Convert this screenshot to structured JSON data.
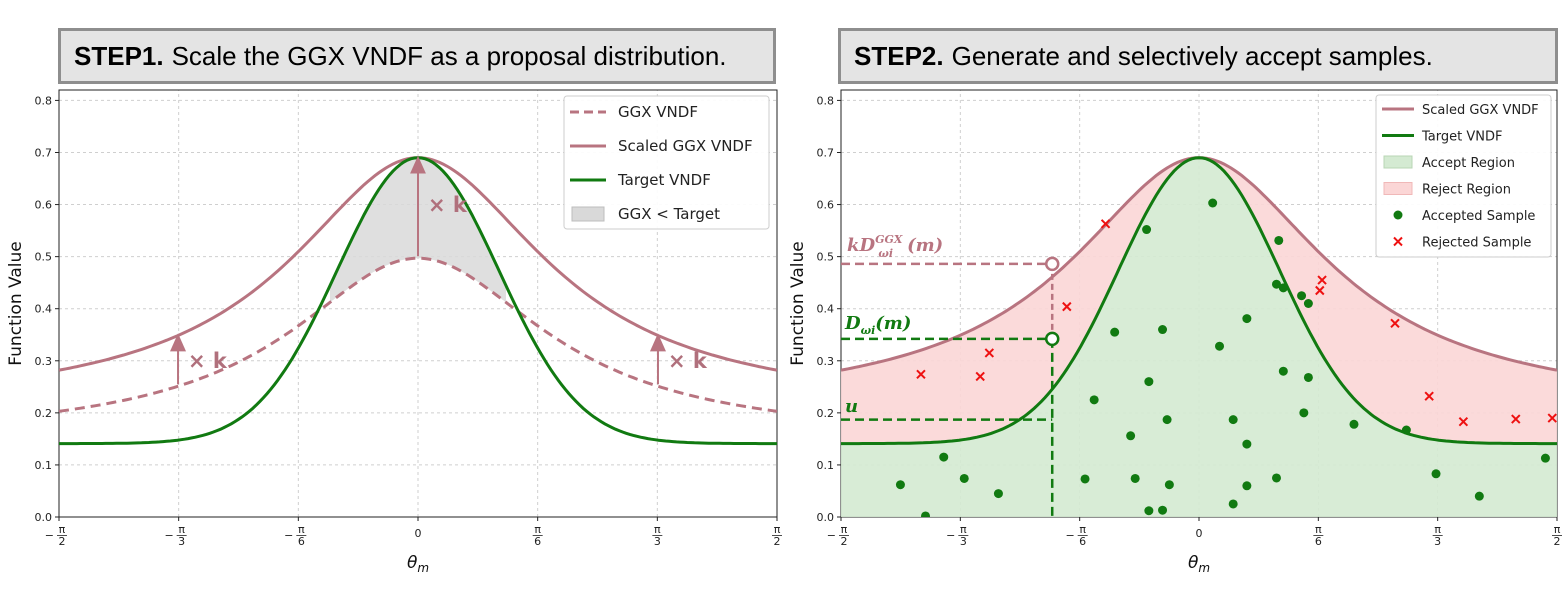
{
  "headers": [
    {
      "step": "STEP1.",
      "text": "Scale the GGX VNDF as a proposal distribution."
    },
    {
      "step": "STEP2.",
      "text": "Generate and selectively accept samples."
    }
  ],
  "colors": {
    "scaled": "#b87480",
    "target": "#117a11",
    "ggx_fill": "#d9d9d9",
    "accept_fill": "#d4ead2",
    "reject_fill": "#fbd6d6",
    "accepted": "#117a11",
    "rejected": "#ee1111"
  },
  "chart_data": [
    {
      "type": "line",
      "xlabel": "θm",
      "ylabel": "Function Value",
      "xlim": [
        -1.5708,
        1.5708
      ],
      "ylim": [
        0,
        0.82
      ],
      "xticks": [
        -1.5708,
        -1.0472,
        -0.5236,
        0,
        0.5236,
        1.0472,
        1.5708
      ],
      "xtick_labels": [
        "−π/2",
        "−π/3",
        "−π/6",
        "0",
        "π/6",
        "π/3",
        "π/2"
      ],
      "yticks": [
        0.0,
        0.1,
        0.2,
        0.3,
        0.4,
        0.5,
        0.6,
        0.7,
        0.8
      ],
      "ytick_labels": [
        "0.0",
        "0.1",
        "0.2",
        "0.3",
        "0.4",
        "0.5",
        "0.6",
        "0.7",
        "0.8"
      ],
      "grid": true,
      "legend_position": "top-right",
      "scale_factor_label": "× k",
      "series": [
        {
          "name": "GGX VNDF",
          "style": "dashed",
          "x": [
            -1.571,
            -1.309,
            -1.047,
            -0.785,
            -0.524,
            -0.262,
            0,
            0.262,
            0.524,
            0.785,
            1.047,
            1.309,
            1.571
          ],
          "y": [
            0.203,
            0.213,
            0.241,
            0.294,
            0.369,
            0.451,
            0.497,
            0.451,
            0.369,
            0.294,
            0.241,
            0.213,
            0.203
          ]
        },
        {
          "name": "Scaled GGX VNDF",
          "style": "solid",
          "x": [
            -1.571,
            -1.309,
            -1.047,
            -0.785,
            -0.524,
            -0.262,
            0,
            0.262,
            0.524,
            0.785,
            1.047,
            1.309,
            1.571
          ],
          "y": [
            0.282,
            0.296,
            0.335,
            0.409,
            0.513,
            0.627,
            0.69,
            0.627,
            0.513,
            0.409,
            0.335,
            0.296,
            0.282
          ]
        },
        {
          "name": "Target VNDF",
          "style": "solid",
          "x": [
            -1.571,
            -1.309,
            -1.047,
            -0.785,
            -0.524,
            -0.262,
            0,
            0.262,
            0.524,
            0.785,
            1.047,
            1.309,
            1.571
          ],
          "y": [
            0.141,
            0.154,
            0.191,
            0.268,
            0.411,
            0.602,
            0.69,
            0.602,
            0.411,
            0.268,
            0.191,
            0.154,
            0.141
          ]
        },
        {
          "name": "GGX < Target",
          "style": "fill"
        }
      ]
    },
    {
      "type": "scatter",
      "xlabel": "θm",
      "ylabel": "Function Value",
      "xlim": [
        -1.5708,
        1.5708
      ],
      "ylim": [
        0,
        0.82
      ],
      "grid": true,
      "legend_position": "top-right",
      "series": [
        {
          "name": "Scaled GGX VNDF",
          "style": "solid"
        },
        {
          "name": "Target VNDF",
          "style": "solid"
        },
        {
          "name": "Accept Region",
          "style": "fill"
        },
        {
          "name": "Reject Region",
          "style": "fill"
        },
        {
          "name": "Accepted Sample",
          "points": [
            [
              -1.31,
              0.062
            ],
            [
              -1.2,
              0.002
            ],
            [
              -1.12,
              0.115
            ],
            [
              -1.03,
              0.074
            ],
            [
              -0.88,
              0.045
            ],
            [
              -0.5,
              0.073
            ],
            [
              -0.46,
              0.225
            ],
            [
              -0.37,
              0.355
            ],
            [
              -0.3,
              0.156
            ],
            [
              -0.28,
              0.074
            ],
            [
              -0.23,
              0.552
            ],
            [
              -0.22,
              0.26
            ],
            [
              -0.22,
              0.012
            ],
            [
              -0.16,
              0.36
            ],
            [
              -0.16,
              0.013
            ],
            [
              -0.14,
              0.187
            ],
            [
              -0.13,
              0.062
            ],
            [
              0.06,
              0.603
            ],
            [
              0.09,
              0.328
            ],
            [
              0.15,
              0.187
            ],
            [
              0.15,
              0.025
            ],
            [
              0.21,
              0.14
            ],
            [
              0.21,
              0.06
            ],
            [
              0.21,
              0.381
            ],
            [
              0.34,
              0.447
            ],
            [
              0.34,
              0.075
            ],
            [
              0.35,
              0.531
            ],
            [
              0.37,
              0.44
            ],
            [
              0.37,
              0.28
            ],
            [
              0.45,
              0.425
            ],
            [
              0.46,
              0.2
            ],
            [
              0.48,
              0.268
            ],
            [
              0.48,
              0.41
            ],
            [
              0.68,
              0.178
            ],
            [
              0.91,
              0.167
            ],
            [
              1.04,
              0.083
            ],
            [
              1.23,
              0.04
            ],
            [
              1.52,
              0.113
            ]
          ]
        },
        {
          "name": "Rejected Sample",
          "points": [
            [
              -1.22,
              0.274
            ],
            [
              -0.96,
              0.27
            ],
            [
              -0.92,
              0.315
            ],
            [
              -0.58,
              0.404
            ],
            [
              -0.41,
              0.563
            ],
            [
              0.53,
              0.435
            ],
            [
              0.54,
              0.455
            ],
            [
              0.86,
              0.372
            ],
            [
              1.01,
              0.232
            ],
            [
              1.16,
              0.183
            ],
            [
              1.39,
              0.188
            ],
            [
              1.55,
              0.19
            ]
          ]
        }
      ],
      "annotations": {
        "theta": -0.644,
        "kD": {
          "label": "kD",
          "sup": "GGX",
          "sub": "ωi",
          "arg": "(m)",
          "value": 0.486
        },
        "D": {
          "label": "D",
          "sub": "ωi",
          "arg": "(m)",
          "value": 0.342
        },
        "u": {
          "label": "u",
          "value": 0.187
        }
      }
    }
  ]
}
